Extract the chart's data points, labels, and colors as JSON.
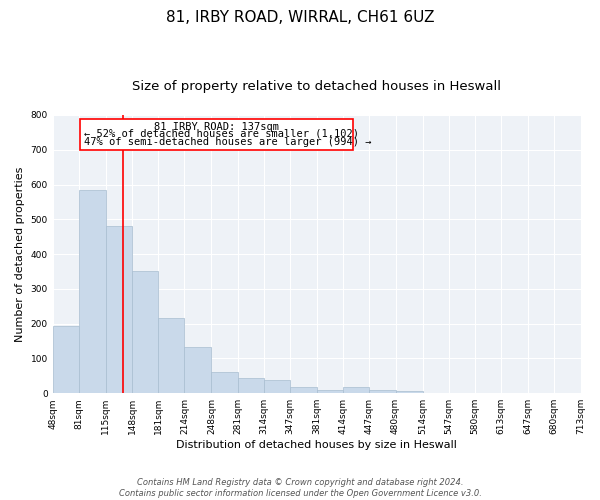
{
  "title_line1": "81, IRBY ROAD, WIRRAL, CH61 6UZ",
  "title_line2": "Size of property relative to detached houses in Heswall",
  "xlabel": "Distribution of detached houses by size in Heswall",
  "ylabel": "Number of detached properties",
  "bar_left_edges": [
    48,
    81,
    115,
    148,
    181,
    214,
    248,
    281,
    314,
    347,
    381,
    414,
    447,
    480,
    514,
    547,
    580,
    613,
    647,
    680
  ],
  "bar_widths": [
    33,
    34,
    33,
    33,
    33,
    34,
    33,
    33,
    33,
    34,
    33,
    33,
    33,
    34,
    33,
    33,
    33,
    34,
    33,
    33
  ],
  "bar_heights": [
    193,
    585,
    480,
    352,
    216,
    133,
    60,
    43,
    37,
    17,
    10,
    19,
    10,
    5,
    0,
    0,
    0,
    0,
    0,
    0
  ],
  "bar_color": "#c9d9ea",
  "bar_edgecolor": "#a8bdd0",
  "red_line_x": 137,
  "ylim": [
    0,
    800
  ],
  "yticks": [
    0,
    100,
    200,
    300,
    400,
    500,
    600,
    700,
    800
  ],
  "xtick_labels": [
    "48sqm",
    "81sqm",
    "115sqm",
    "148sqm",
    "181sqm",
    "214sqm",
    "248sqm",
    "281sqm",
    "314sqm",
    "347sqm",
    "381sqm",
    "414sqm",
    "447sqm",
    "480sqm",
    "514sqm",
    "547sqm",
    "580sqm",
    "613sqm",
    "647sqm",
    "680sqm",
    "713sqm"
  ],
  "xtick_positions": [
    48,
    81,
    115,
    148,
    181,
    214,
    248,
    281,
    314,
    347,
    381,
    414,
    447,
    480,
    514,
    547,
    580,
    613,
    647,
    680,
    713
  ],
  "annotation_text_line1": "81 IRBY ROAD: 137sqm",
  "annotation_text_line2": "← 52% of detached houses are smaller (1,102)",
  "annotation_text_line3": "47% of semi-detached houses are larger (994) →",
  "footer_line1": "Contains HM Land Registry data © Crown copyright and database right 2024.",
  "footer_line2": "Contains public sector information licensed under the Open Government Licence v3.0.",
  "background_color": "#eef2f7",
  "grid_color": "#ffffff",
  "title_fontsize": 11,
  "subtitle_fontsize": 9.5,
  "axis_label_fontsize": 8,
  "tick_fontsize": 6.5,
  "annotation_fontsize": 7.5,
  "footer_fontsize": 6
}
